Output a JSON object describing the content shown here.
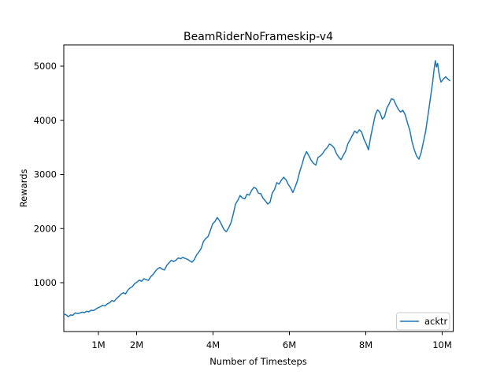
{
  "chart_data": {
    "type": "line",
    "title": "BeamRiderNoFrameskip-v4",
    "xlabel": "Number of Timesteps",
    "ylabel": "Rewards",
    "x_unit_note": "x values in millions of timesteps",
    "xlim": [
      0.09,
      10.28
    ],
    "ylim": [
      100,
      5390
    ],
    "grid": false,
    "x_ticks": [
      {
        "label": "1M",
        "value": 1
      },
      {
        "label": "2M",
        "value": 2
      },
      {
        "label": "4M",
        "value": 4
      },
      {
        "label": "6M",
        "value": 6
      },
      {
        "label": "8M",
        "value": 8
      },
      {
        "label": "10M",
        "value": 10
      }
    ],
    "y_ticks": [
      {
        "label": "1000",
        "value": 1000
      },
      {
        "label": "2000",
        "value": 2000
      },
      {
        "label": "3000",
        "value": 3000
      },
      {
        "label": "4000",
        "value": 4000
      },
      {
        "label": "5000",
        "value": 5000
      }
    ],
    "legend": {
      "position": "lower right",
      "entries": [
        {
          "label": "acktr",
          "color": "#1f77b4"
        }
      ]
    },
    "series": [
      {
        "name": "acktr",
        "color": "#1f77b4",
        "points": [
          [
            0.09,
            425
          ],
          [
            0.15,
            408
          ],
          [
            0.21,
            372
          ],
          [
            0.27,
            405
          ],
          [
            0.33,
            398
          ],
          [
            0.39,
            441
          ],
          [
            0.45,
            431
          ],
          [
            0.51,
            438
          ],
          [
            0.57,
            458
          ],
          [
            0.63,
            447
          ],
          [
            0.69,
            472
          ],
          [
            0.75,
            462
          ],
          [
            0.81,
            492
          ],
          [
            0.87,
            485
          ],
          [
            0.93,
            513
          ],
          [
            0.99,
            538
          ],
          [
            1.05,
            555
          ],
          [
            1.11,
            584
          ],
          [
            1.17,
            570
          ],
          [
            1.23,
            608
          ],
          [
            1.29,
            628
          ],
          [
            1.35,
            672
          ],
          [
            1.41,
            655
          ],
          [
            1.47,
            705
          ],
          [
            1.53,
            742
          ],
          [
            1.59,
            788
          ],
          [
            1.65,
            815
          ],
          [
            1.71,
            794
          ],
          [
            1.77,
            862
          ],
          [
            1.83,
            905
          ],
          [
            1.89,
            928
          ],
          [
            1.95,
            986
          ],
          [
            2.01,
            1012
          ],
          [
            2.07,
            1048
          ],
          [
            2.13,
            1025
          ],
          [
            2.19,
            1074
          ],
          [
            2.25,
            1056
          ],
          [
            2.31,
            1043
          ],
          [
            2.37,
            1112
          ],
          [
            2.43,
            1154
          ],
          [
            2.49,
            1212
          ],
          [
            2.55,
            1258
          ],
          [
            2.61,
            1282
          ],
          [
            2.67,
            1248
          ],
          [
            2.73,
            1235
          ],
          [
            2.79,
            1322
          ],
          [
            2.85,
            1368
          ],
          [
            2.91,
            1415
          ],
          [
            2.97,
            1392
          ],
          [
            3.03,
            1418
          ],
          [
            3.09,
            1458
          ],
          [
            3.15,
            1442
          ],
          [
            3.21,
            1468
          ],
          [
            3.27,
            1448
          ],
          [
            3.33,
            1432
          ],
          [
            3.39,
            1405
          ],
          [
            3.45,
            1378
          ],
          [
            3.51,
            1425
          ],
          [
            3.57,
            1512
          ],
          [
            3.63,
            1568
          ],
          [
            3.69,
            1635
          ],
          [
            3.75,
            1762
          ],
          [
            3.81,
            1818
          ],
          [
            3.87,
            1852
          ],
          [
            3.93,
            1965
          ],
          [
            3.99,
            2085
          ],
          [
            4.05,
            2128
          ],
          [
            4.11,
            2205
          ],
          [
            4.17,
            2148
          ],
          [
            4.23,
            2062
          ],
          [
            4.29,
            1978
          ],
          [
            4.35,
            1942
          ],
          [
            4.41,
            2015
          ],
          [
            4.47,
            2105
          ],
          [
            4.53,
            2268
          ],
          [
            4.59,
            2455
          ],
          [
            4.65,
            2522
          ],
          [
            4.71,
            2612
          ],
          [
            4.77,
            2565
          ],
          [
            4.83,
            2548
          ],
          [
            4.89,
            2635
          ],
          [
            4.95,
            2618
          ],
          [
            5.01,
            2705
          ],
          [
            5.07,
            2762
          ],
          [
            5.13,
            2738
          ],
          [
            5.19,
            2652
          ],
          [
            5.25,
            2645
          ],
          [
            5.31,
            2562
          ],
          [
            5.37,
            2512
          ],
          [
            5.43,
            2455
          ],
          [
            5.49,
            2482
          ],
          [
            5.55,
            2655
          ],
          [
            5.61,
            2722
          ],
          [
            5.67,
            2848
          ],
          [
            5.73,
            2822
          ],
          [
            5.79,
            2895
          ],
          [
            5.85,
            2948
          ],
          [
            5.91,
            2902
          ],
          [
            5.97,
            2818
          ],
          [
            6.03,
            2752
          ],
          [
            6.09,
            2665
          ],
          [
            6.15,
            2768
          ],
          [
            6.21,
            2885
          ],
          [
            6.27,
            3052
          ],
          [
            6.33,
            3185
          ],
          [
            6.39,
            3332
          ],
          [
            6.45,
            3422
          ],
          [
            6.51,
            3345
          ],
          [
            6.57,
            3262
          ],
          [
            6.63,
            3205
          ],
          [
            6.69,
            3172
          ],
          [
            6.75,
            3315
          ],
          [
            6.81,
            3342
          ],
          [
            6.87,
            3385
          ],
          [
            6.93,
            3452
          ],
          [
            6.99,
            3495
          ],
          [
            7.05,
            3562
          ],
          [
            7.11,
            3538
          ],
          [
            7.17,
            3492
          ],
          [
            7.23,
            3385
          ],
          [
            7.29,
            3322
          ],
          [
            7.35,
            3272
          ],
          [
            7.41,
            3352
          ],
          [
            7.47,
            3425
          ],
          [
            7.53,
            3565
          ],
          [
            7.59,
            3642
          ],
          [
            7.65,
            3722
          ],
          [
            7.71,
            3802
          ],
          [
            7.77,
            3765
          ],
          [
            7.83,
            3825
          ],
          [
            7.89,
            3782
          ],
          [
            7.95,
            3655
          ],
          [
            8.01,
            3565
          ],
          [
            8.07,
            3455
          ],
          [
            8.13,
            3702
          ],
          [
            8.19,
            3905
          ],
          [
            8.25,
            4105
          ],
          [
            8.31,
            4192
          ],
          [
            8.37,
            4148
          ],
          [
            8.43,
            4022
          ],
          [
            8.49,
            4065
          ],
          [
            8.55,
            4225
          ],
          [
            8.61,
            4302
          ],
          [
            8.67,
            4398
          ],
          [
            8.73,
            4382
          ],
          [
            8.79,
            4285
          ],
          [
            8.85,
            4205
          ],
          [
            8.91,
            4152
          ],
          [
            8.97,
            4185
          ],
          [
            9.03,
            4105
          ],
          [
            9.09,
            3952
          ],
          [
            9.15,
            3822
          ],
          [
            9.21,
            3605
          ],
          [
            9.27,
            3455
          ],
          [
            9.33,
            3342
          ],
          [
            9.39,
            3282
          ],
          [
            9.45,
            3405
          ],
          [
            9.51,
            3602
          ],
          [
            9.57,
            3805
          ],
          [
            9.63,
            4105
          ],
          [
            9.69,
            4402
          ],
          [
            9.75,
            4705
          ],
          [
            9.79,
            4952
          ],
          [
            9.82,
            5102
          ],
          [
            9.85,
            4985
          ],
          [
            9.88,
            5052
          ],
          [
            9.91,
            4902
          ],
          [
            9.94,
            4782
          ],
          [
            9.97,
            4705
          ],
          [
            10.03,
            4762
          ],
          [
            10.09,
            4802
          ],
          [
            10.15,
            4762
          ],
          [
            10.2,
            4732
          ]
        ]
      }
    ]
  },
  "colors": {
    "line": "#1f77b4",
    "axes": "#000000",
    "legend_border": "#cccccc",
    "background": "#ffffff"
  }
}
